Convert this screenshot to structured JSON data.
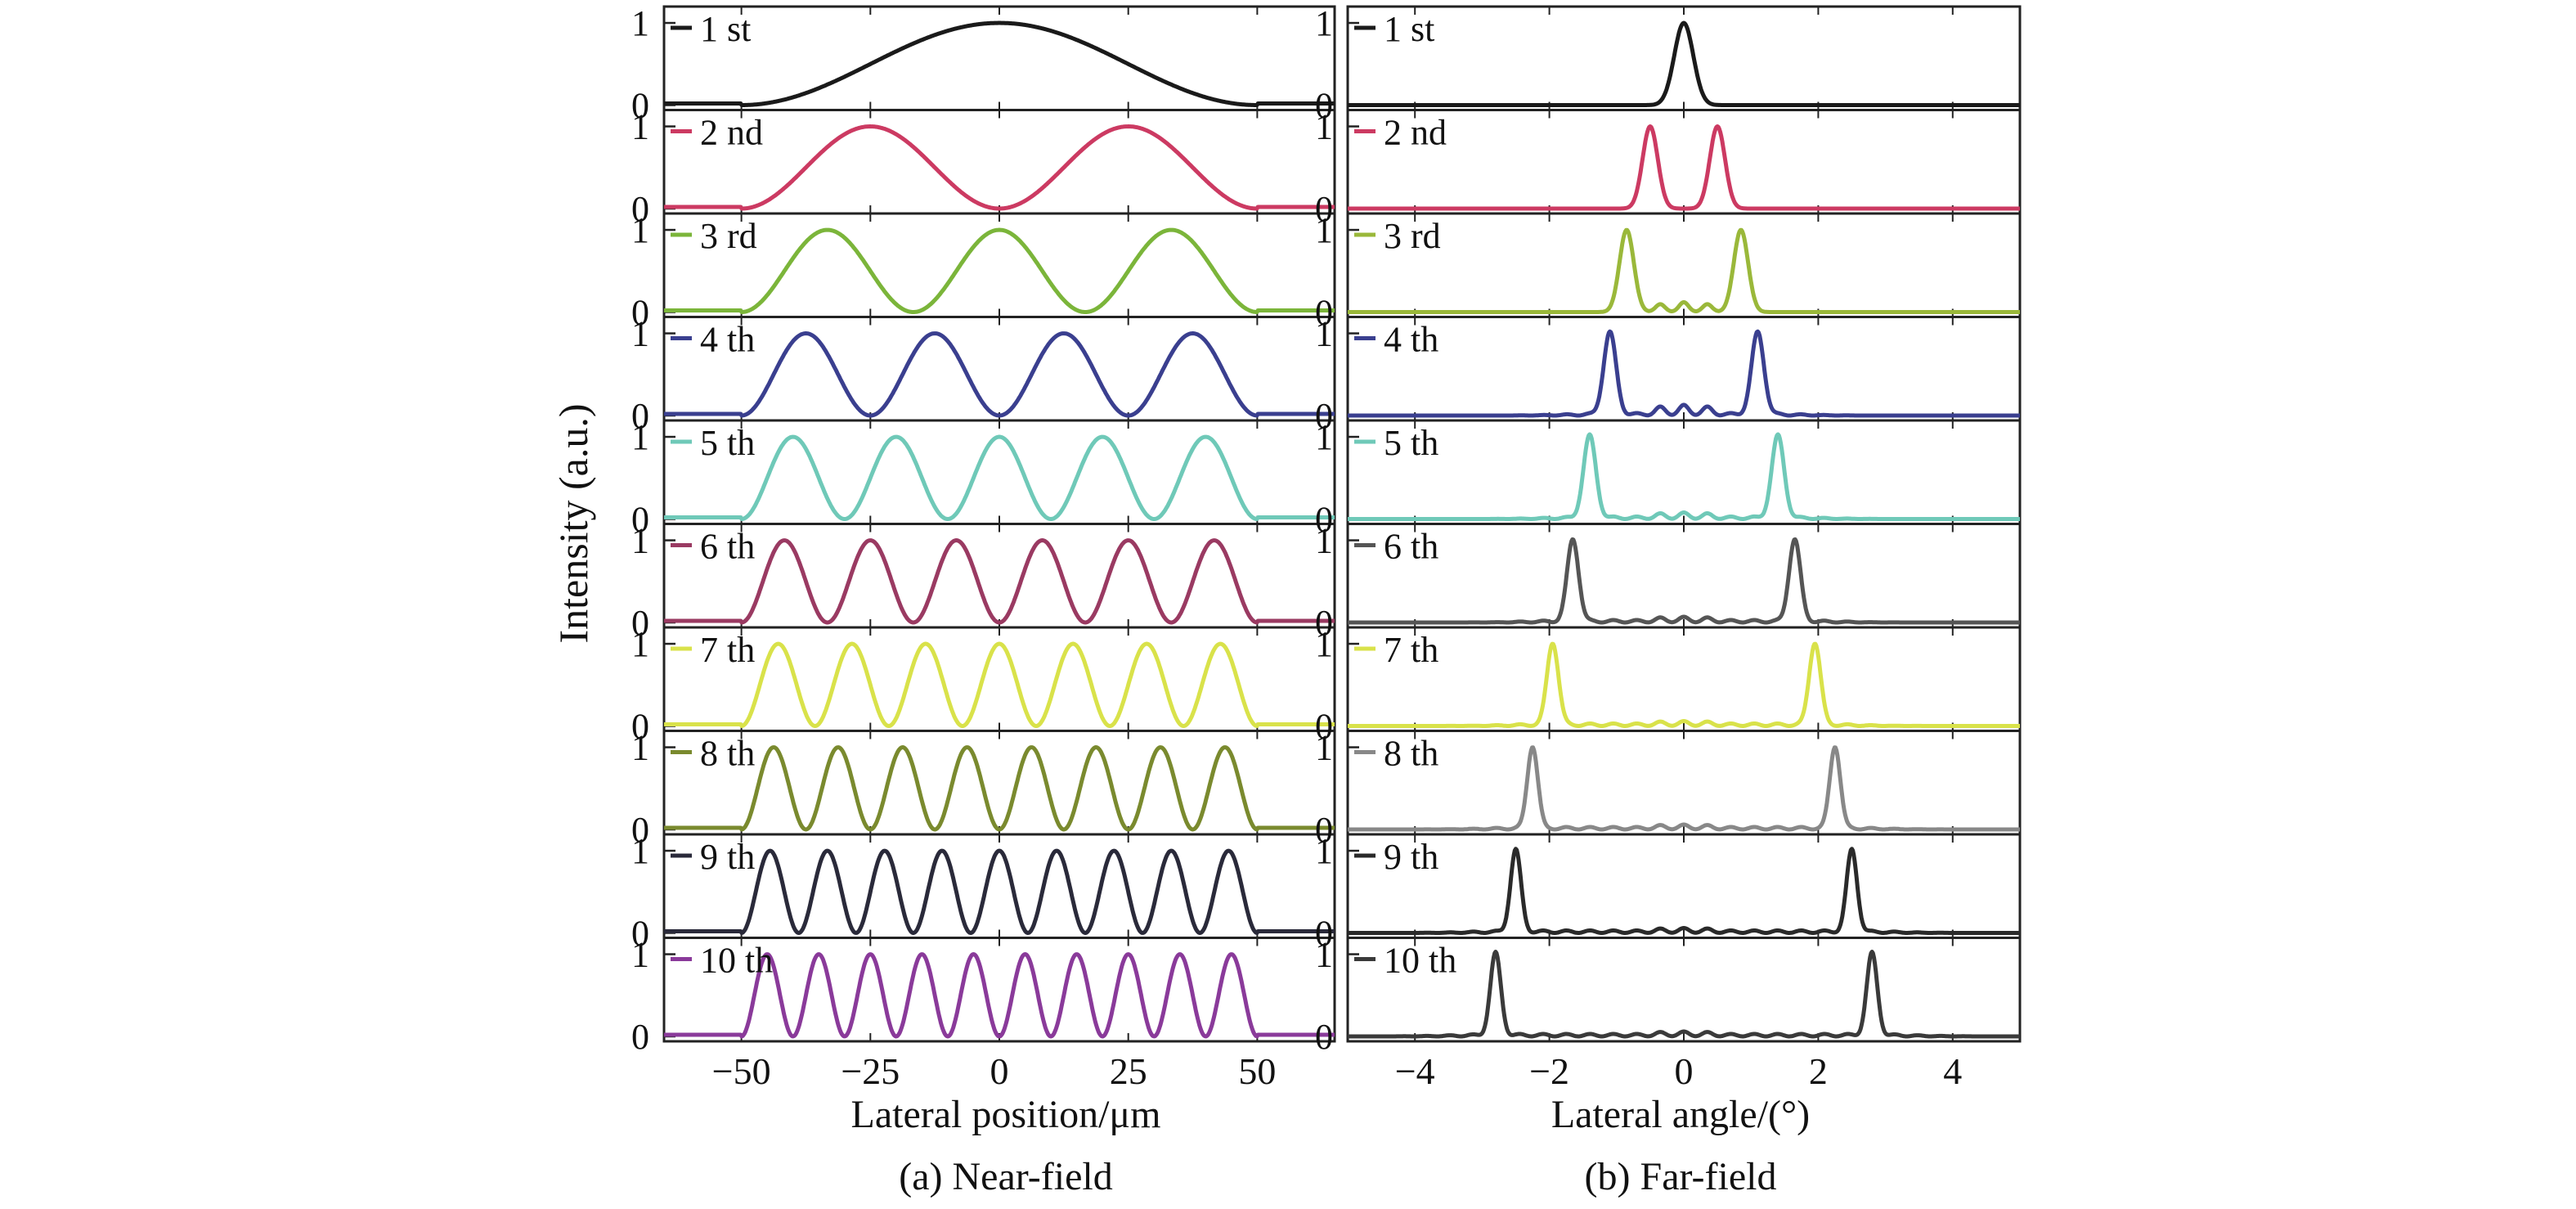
{
  "figure": {
    "ylabel": "Intensity (a.u.)",
    "panel_a_caption": "(a) Near-field",
    "panel_b_caption": "(b) Far-field"
  },
  "chart_data": [
    {
      "type": "line",
      "panel": "near-field",
      "xlabel": "Lateral position/μm",
      "ylabel": "Intensity (a.u.)",
      "xlim": [
        -65,
        65
      ],
      "ylim": [
        0,
        1.1
      ],
      "xticks": [
        -50,
        -25,
        0,
        25,
        50
      ],
      "xtick_labels": [
        "−50",
        "−25",
        "0",
        "25",
        "50"
      ],
      "yticks": [
        0,
        1
      ],
      "ytick_labels": [
        "0",
        "1"
      ],
      "aperture_half_width": 50,
      "grid": false,
      "legend": "top-left of each subplot",
      "series": [
        {
          "name": "1 st",
          "mode": 1,
          "color": "#1a1a1a"
        },
        {
          "name": "2 nd",
          "mode": 2,
          "color": "#cc3a62"
        },
        {
          "name": "3 rd",
          "mode": 3,
          "color": "#7bb53a"
        },
        {
          "name": "4 th",
          "mode": 4,
          "color": "#3a3f8f"
        },
        {
          "name": "5 th",
          "mode": 5,
          "color": "#6fc9b8"
        },
        {
          "name": "6 th",
          "mode": 6,
          "color": "#9a3a62"
        },
        {
          "name": "7 th",
          "mode": 7,
          "color": "#d9e24a"
        },
        {
          "name": "8 th",
          "mode": 8,
          "color": "#7a8a2e"
        },
        {
          "name": "9 th",
          "mode": 9,
          "color": "#2a2a3a"
        },
        {
          "name": "10 th",
          "mode": 10,
          "color": "#8a3a9a"
        }
      ]
    },
    {
      "type": "line",
      "panel": "far-field",
      "xlabel": "Lateral angle/(°)",
      "ylabel": "Intensity (a.u.)",
      "xlim": [
        -5,
        5
      ],
      "ylim": [
        0,
        1.1
      ],
      "xticks": [
        -4,
        -2,
        0,
        2,
        4
      ],
      "xtick_labels": [
        "−4",
        "−2",
        "0",
        "2",
        "4"
      ],
      "yticks": [
        0,
        1
      ],
      "ytick_labels": [
        "0",
        "1"
      ],
      "grid": false,
      "legend": "top-left of each subplot",
      "series": [
        {
          "name": "1 st",
          "mode": 1,
          "peak_angles": [
            0
          ],
          "peak_width": 0.2,
          "center_level": 1,
          "color": "#1a1a1a"
        },
        {
          "name": "2 nd",
          "mode": 2,
          "peak_angles": [
            -0.5,
            0.5
          ],
          "peak_width": 0.16,
          "center_level": 0,
          "color": "#cc3a62"
        },
        {
          "name": "3 rd",
          "mode": 3,
          "peak_angles": [
            -0.85,
            0.85
          ],
          "peak_width": 0.15,
          "center_level": 0.12,
          "color": "#9ab83a"
        },
        {
          "name": "4 th",
          "mode": 4,
          "peak_angles": [
            -1.1,
            1.1
          ],
          "peak_width": 0.13,
          "center_level": 0.1,
          "color": "#3a3f8f"
        },
        {
          "name": "5 th",
          "mode": 5,
          "peak_angles": [
            -1.4,
            1.4
          ],
          "peak_width": 0.13,
          "center_level": 0.05,
          "color": "#6fc9b8"
        },
        {
          "name": "6 th",
          "mode": 6,
          "peak_angles": [
            -1.65,
            1.65
          ],
          "peak_width": 0.12,
          "center_level": 0.04,
          "color": "#555555"
        },
        {
          "name": "7 th",
          "mode": 7,
          "peak_angles": [
            -1.95,
            1.95
          ],
          "peak_width": 0.12,
          "center_level": 0.03,
          "color": "#d9e24a"
        },
        {
          "name": "8 th",
          "mode": 8,
          "peak_angles": [
            -2.25,
            2.25
          ],
          "peak_width": 0.11,
          "center_level": 0.03,
          "color": "#888888"
        },
        {
          "name": "9 th",
          "mode": 9,
          "peak_angles": [
            -2.5,
            2.5
          ],
          "peak_width": 0.11,
          "center_level": 0.03,
          "color": "#2a2a2a"
        },
        {
          "name": "10 th",
          "mode": 10,
          "peak_angles": [
            -2.8,
            2.8
          ],
          "peak_width": 0.11,
          "center_level": 0.03,
          "color": "#3a3a3a"
        }
      ]
    }
  ]
}
